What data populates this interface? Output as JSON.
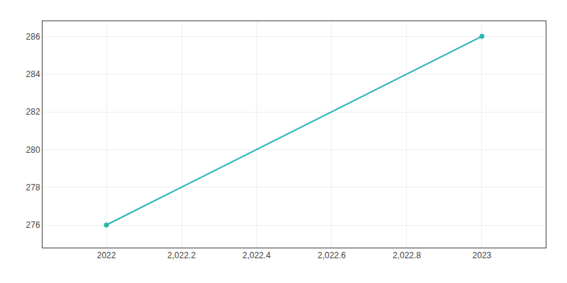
{
  "chart_data": {
    "type": "line",
    "x": [
      2022,
      2023
    ],
    "values": [
      276,
      286
    ],
    "color": "#2ab5b0",
    "marker": "circle",
    "xlim": [
      2021.83,
      2023.17
    ],
    "ylim": [
      274.8,
      286.8
    ],
    "xticks": [
      2022,
      {
        "value": 2022.2,
        "label": "2,022.2"
      },
      {
        "value": 2022.4,
        "label": "2,022.4"
      },
      {
        "value": 2022.6,
        "label": "2,022.6"
      },
      {
        "value": 2022.8,
        "label": "2,022.8"
      },
      2023
    ],
    "yticks": [
      276,
      278,
      280,
      282,
      284,
      286
    ],
    "grid": true
  }
}
